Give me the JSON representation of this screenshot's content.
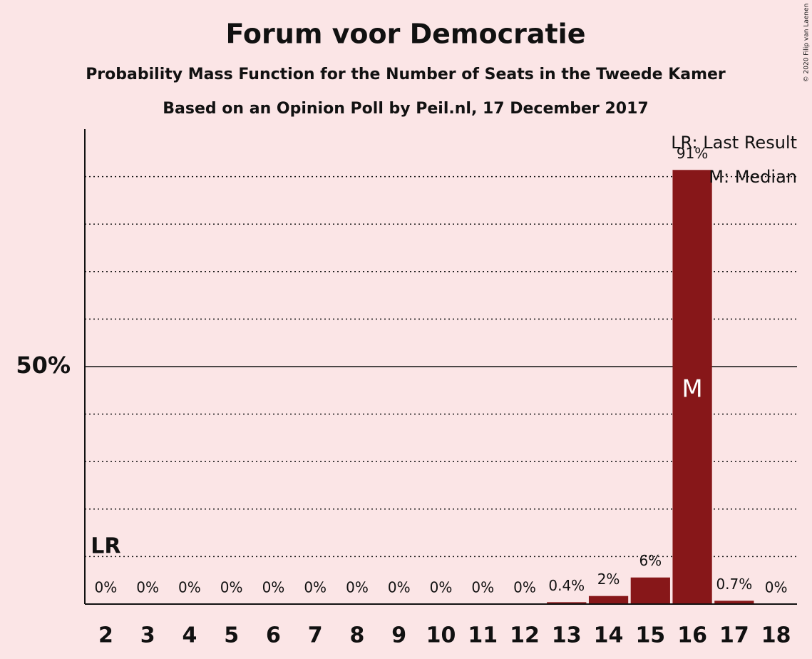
{
  "chart_data": {
    "type": "bar",
    "title": "Forum voor Democratie",
    "subtitle": "Probability Mass Function for the Number of Seats in the Tweede Kamer",
    "subtitle2": "Based on an Opinion Poll by Peil.nl, 17 December 2017",
    "credit": "© 2020 Filip van Laenen",
    "categories": [
      2,
      3,
      4,
      5,
      6,
      7,
      8,
      9,
      10,
      11,
      12,
      13,
      14,
      15,
      16,
      17,
      18
    ],
    "values": [
      0,
      0,
      0,
      0,
      0,
      0,
      0,
      0,
      0,
      0,
      0,
      0.4,
      1.7,
      5.6,
      91.4,
      0.7,
      0
    ],
    "value_labels": [
      "0%",
      "0%",
      "0%",
      "0%",
      "0%",
      "0%",
      "0%",
      "0%",
      "0%",
      "0%",
      "0%",
      "0.4%",
      "2%",
      "6%",
      "91%",
      "0.7%",
      "0%"
    ],
    "color": "#871719",
    "ylim": [
      0,
      100
    ],
    "yticks": [
      {
        "value": 50,
        "label": "50%"
      }
    ],
    "minor_grid": [
      10,
      20,
      30,
      40,
      60,
      70,
      80,
      90
    ],
    "last_result": 2,
    "last_result_label": "LR",
    "median": 16,
    "median_label": "M",
    "legend": [
      "LR: Last Result",
      "M: Median"
    ],
    "legend_position": "upper right"
  }
}
